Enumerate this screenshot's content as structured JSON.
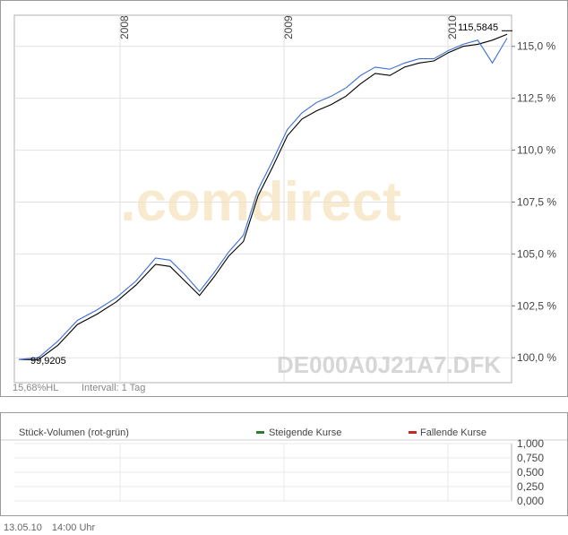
{
  "chart_data": [
    {
      "type": "line",
      "x_ticks": [
        "2008",
        "2009",
        "2010"
      ],
      "y_ticks": [
        "100,0 %",
        "102,5 %",
        "105,0 %",
        "107,5 %",
        "110,0 %",
        "112,5 %",
        "115,0 %"
      ],
      "ylim": [
        98.8,
        116.5
      ],
      "grid": true,
      "watermark": ".comdirect",
      "isin": "DE000A0J21A7.DFK",
      "start_label": "99,9205",
      "end_label": "115,5845",
      "footer_left": "15,68%HL",
      "footer_interval": "Intervall: 1 Tag",
      "series": [
        {
          "color": "#000000",
          "x": [
            0,
            0.04,
            0.08,
            0.12,
            0.16,
            0.2,
            0.24,
            0.28,
            0.31,
            0.34,
            0.37,
            0.4,
            0.43,
            0.46,
            0.49,
            0.52,
            0.55,
            0.58,
            0.61,
            0.64,
            0.67,
            0.7,
            0.73,
            0.76,
            0.79,
            0.82,
            0.85,
            0.88,
            0.91,
            0.94,
            0.97,
            1.0
          ],
          "y": [
            99.92,
            99.9,
            100.6,
            101.6,
            102.1,
            102.7,
            103.5,
            104.5,
            104.4,
            103.7,
            103.0,
            103.9,
            104.9,
            105.6,
            107.8,
            109.2,
            110.7,
            111.5,
            111.9,
            112.2,
            112.6,
            113.2,
            113.7,
            113.6,
            114.0,
            114.2,
            114.3,
            114.7,
            115.0,
            115.1,
            115.3,
            115.58
          ]
        },
        {
          "color": "#3b6fd6",
          "x": [
            0,
            0.04,
            0.08,
            0.12,
            0.16,
            0.2,
            0.24,
            0.28,
            0.31,
            0.34,
            0.37,
            0.4,
            0.43,
            0.46,
            0.49,
            0.52,
            0.55,
            0.58,
            0.61,
            0.64,
            0.67,
            0.7,
            0.73,
            0.76,
            0.79,
            0.82,
            0.85,
            0.88,
            0.91,
            0.94,
            0.97,
            1.0
          ],
          "y": [
            99.92,
            100.0,
            100.8,
            101.8,
            102.3,
            102.9,
            103.7,
            104.8,
            104.7,
            104.0,
            103.2,
            104.1,
            105.1,
            105.9,
            108.1,
            109.5,
            111.0,
            111.8,
            112.3,
            112.6,
            113.0,
            113.6,
            114.0,
            113.9,
            114.2,
            114.4,
            114.4,
            114.8,
            115.1,
            115.3,
            114.2,
            115.4
          ]
        }
      ]
    },
    {
      "type": "bar",
      "title": "Stück-Volumen (rot-grün)",
      "legend": [
        {
          "label": "Steigende Kurse",
          "color": "#2e7d32"
        },
        {
          "label": "Fallende Kurse",
          "color": "#c62828"
        }
      ],
      "y_ticks": [
        "1,000",
        "0,750",
        "0,500",
        "0,250",
        "0,000"
      ],
      "ylim": [
        0,
        1
      ],
      "values": []
    }
  ],
  "footer": {
    "date": "13.05.10",
    "time": "14:00 Uhr"
  }
}
